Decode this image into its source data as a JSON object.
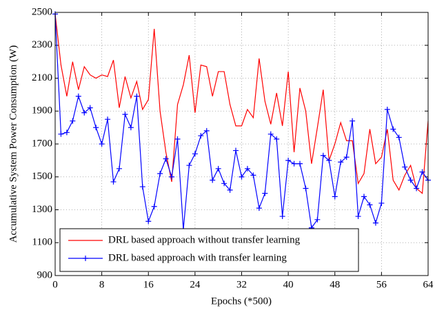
{
  "chart_data": {
    "type": "line",
    "xlabel": "Epochs (*500)",
    "ylabel": "Accumulative System Power Consumption (W)",
    "x": [
      0,
      1,
      2,
      3,
      4,
      5,
      6,
      7,
      8,
      9,
      10,
      11,
      12,
      13,
      14,
      15,
      16,
      17,
      18,
      19,
      20,
      21,
      22,
      23,
      24,
      25,
      26,
      27,
      28,
      29,
      30,
      31,
      32,
      33,
      34,
      35,
      36,
      37,
      38,
      39,
      40,
      41,
      42,
      43,
      44,
      45,
      46,
      47,
      48,
      49,
      50,
      51,
      52,
      53,
      54,
      55,
      56,
      57,
      58,
      59,
      60,
      61,
      62,
      63,
      64
    ],
    "series": [
      {
        "name": "DRL based approach without transfer learning",
        "color": "#ff0000",
        "marker": "none",
        "values": [
          2490,
          2180,
          1990,
          2200,
          2030,
          2170,
          2120,
          2100,
          2120,
          2110,
          2210,
          1920,
          2110,
          1980,
          2080,
          1910,
          1970,
          2400,
          1900,
          1650,
          1470,
          1940,
          2060,
          2240,
          1890,
          2180,
          2170,
          1990,
          2140,
          2140,
          1940,
          1810,
          1810,
          1910,
          1860,
          2220,
          1960,
          1820,
          2010,
          1810,
          2140,
          1650,
          2040,
          1900,
          1580,
          1800,
          2030,
          1600,
          1700,
          1830,
          1720,
          1720,
          1460,
          1520,
          1790,
          1580,
          1620,
          1790,
          1480,
          1420,
          1510,
          1570,
          1430,
          1400,
          1840
        ]
      },
      {
        "name": "DRL based approach with transfer learning",
        "color": "#0000ff",
        "marker": "plus",
        "values": [
          2490,
          1760,
          1770,
          1840,
          1990,
          1890,
          1920,
          1800,
          1700,
          1850,
          1470,
          1550,
          1880,
          1800,
          1990,
          1440,
          1230,
          1320,
          1520,
          1610,
          1500,
          1730,
          1180,
          1570,
          1640,
          1750,
          1780,
          1480,
          1550,
          1460,
          1420,
          1660,
          1500,
          1550,
          1510,
          1310,
          1400,
          1760,
          1730,
          1260,
          1600,
          1580,
          1580,
          1430,
          1190,
          1240,
          1630,
          1600,
          1380,
          1590,
          1620,
          1840,
          1260,
          1380,
          1330,
          1220,
          1340,
          1910,
          1790,
          1740,
          1560,
          1480,
          1430,
          1530,
          1480
        ]
      }
    ],
    "xlim": [
      0,
      64
    ],
    "xticks": [
      0,
      8,
      16,
      24,
      32,
      40,
      48,
      56,
      64
    ],
    "ylim": [
      900,
      2500
    ],
    "yticks": [
      900,
      1100,
      1300,
      1500,
      1700,
      1900,
      2100,
      2300,
      2500
    ],
    "grid": true,
    "legend": "lower left"
  }
}
